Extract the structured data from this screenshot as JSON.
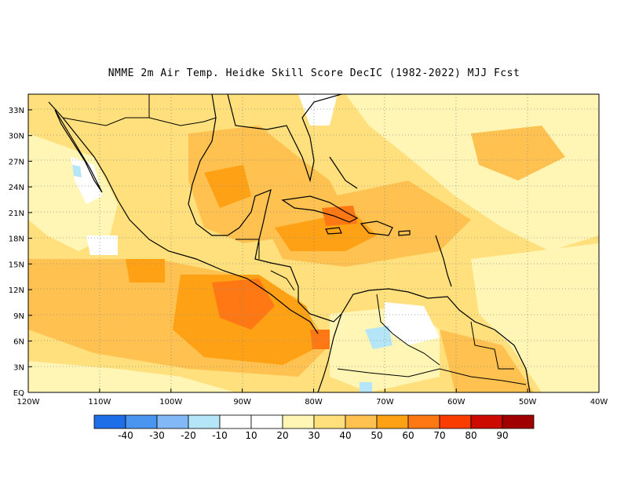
{
  "title": "NMME  2m Air Temp. Heidke Skill Score DecIC (1982-2022) MJJ Fcst",
  "lat_labels": [
    "EQ",
    "3N",
    "6N",
    "9N",
    "12N",
    "15N",
    "18N",
    "21N",
    "24N",
    "27N",
    "30N",
    "33N"
  ],
  "lon_labels": [
    "120W",
    "110W",
    "100W",
    "90W",
    "80W",
    "70W",
    "60W",
    "50W",
    "40W"
  ],
  "colorbar": {
    "labels": [
      "-40",
      "-30",
      "-20",
      "-10",
      "10",
      "20",
      "30",
      "40",
      "50",
      "60",
      "70",
      "80",
      "90"
    ],
    "colors": [
      "#1e6ee8",
      "#4a95f0",
      "#82b8f5",
      "#b4e6f8",
      "#ffffff",
      "#fff5b4",
      "#ffe07d",
      "#ffc250",
      "#ffa114",
      "#ff7814",
      "#fa3c00",
      "#cd0a00",
      "#a00000"
    ]
  }
}
